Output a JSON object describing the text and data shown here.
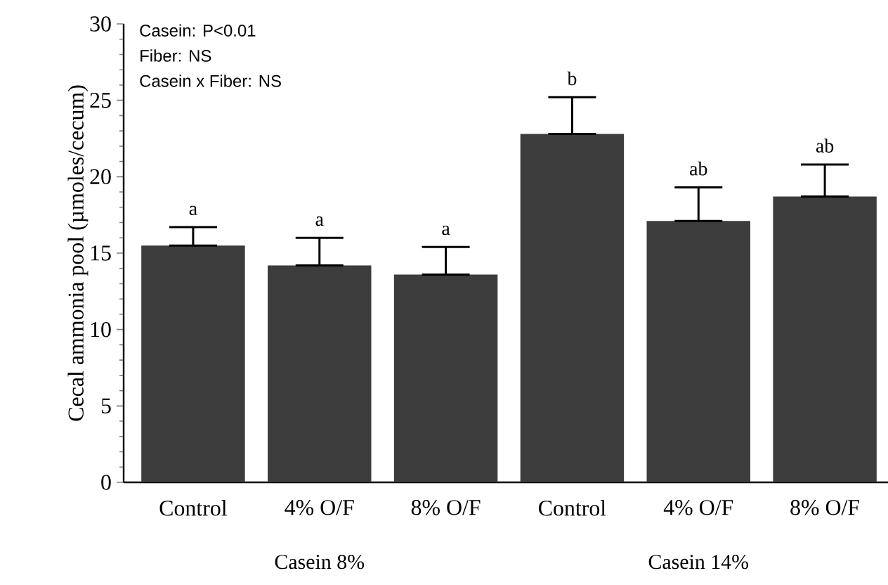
{
  "chart_data": {
    "type": "bar",
    "ylabel": "Cecal ammonia pool (µmoles/cecum)",
    "categories": [
      "Control",
      "4% O/F",
      "8% O/F",
      "Control",
      "4% O/F",
      "8% O/F"
    ],
    "values": [
      15.5,
      14.2,
      13.6,
      22.8,
      17.1,
      18.7
    ],
    "errors": [
      [
        15.5,
        16.7
      ],
      [
        14.2,
        16.0
      ],
      [
        13.6,
        15.4
      ],
      [
        22.8,
        25.2
      ],
      [
        17.1,
        19.3
      ],
      [
        18.7,
        20.8
      ]
    ],
    "color": "#3c3c3c",
    "ylim": [
      0,
      30
    ],
    "yticks": [
      0,
      5,
      10,
      15,
      20,
      25,
      30
    ],
    "annotations": [
      "Casein: P<0.01",
      "Fiber:  NS",
      "Casein x Fiber: NS",
      "Casein 8%",
      "Casein 14%",
      "a",
      "a",
      "a",
      "b",
      "ab",
      "ab"
    ]
  }
}
